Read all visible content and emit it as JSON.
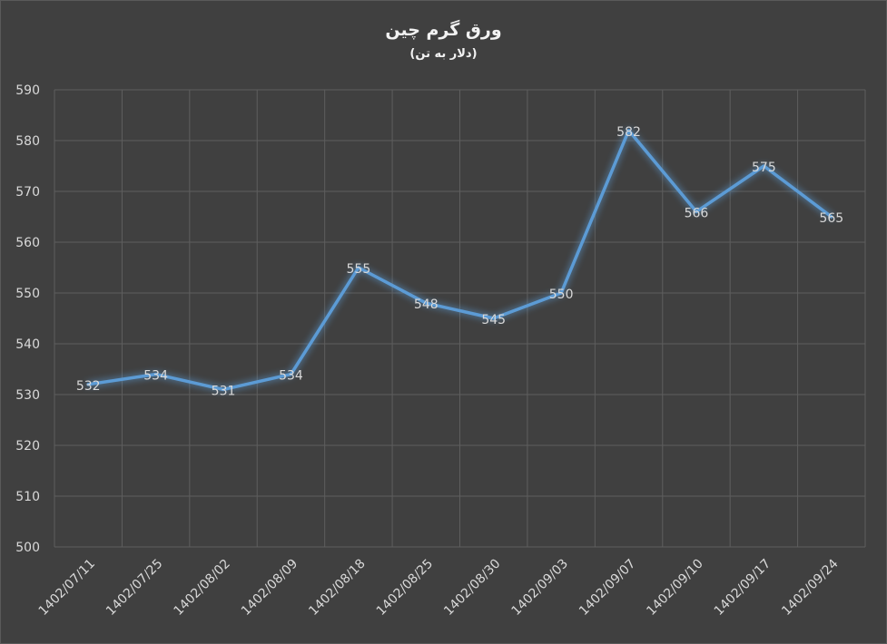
{
  "chart_data": {
    "type": "line",
    "title": "ورق گرم چین",
    "subtitle": "(دلار به تن)",
    "xlabel": "",
    "ylabel": "",
    "categories": [
      "1402/07/11",
      "1402/07/25",
      "1402/08/02",
      "1402/08/09",
      "1402/08/18",
      "1402/08/25",
      "1402/08/30",
      "1402/09/03",
      "1402/09/07",
      "1402/09/10",
      "1402/09/17",
      "1402/09/24"
    ],
    "values": [
      532,
      534,
      531,
      534,
      555,
      548,
      545,
      550,
      582,
      566,
      575,
      565
    ],
    "ylim": [
      500,
      590
    ],
    "yticks": [
      500,
      510,
      520,
      530,
      540,
      550,
      560,
      570,
      580,
      590
    ],
    "grid": true,
    "legend": "none",
    "line_color": "#5b9bd5",
    "background_color": "#404040"
  }
}
